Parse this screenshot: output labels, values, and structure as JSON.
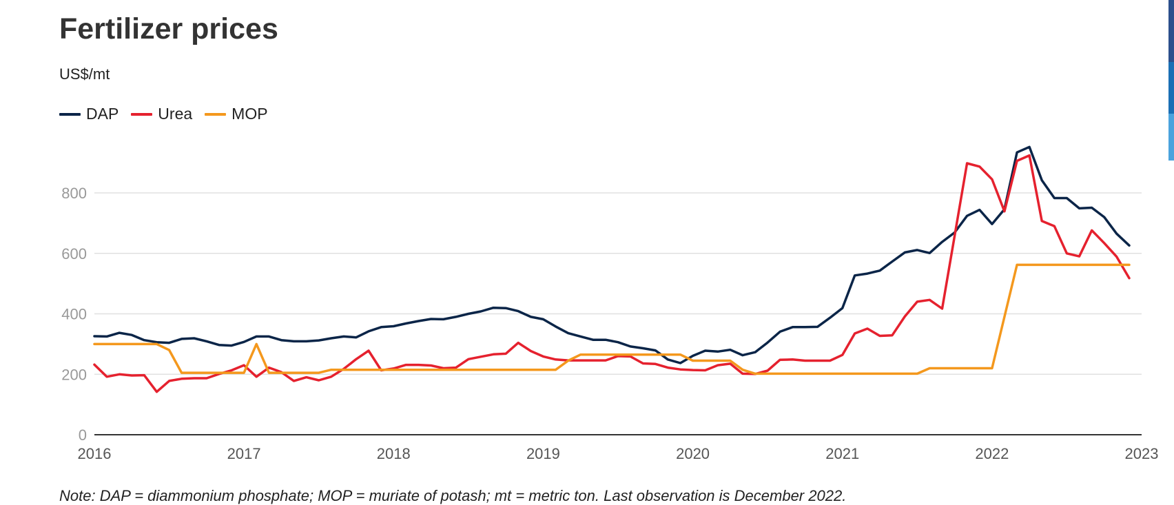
{
  "page": {
    "title": "Fertilizer prices",
    "subtitle": "US$/mt",
    "note": "Note: DAP = diammonium phosphate; MOP = muriate of potash; mt = metric ton. Last observation is December 2022."
  },
  "colors": {
    "DAP": "#0b2548",
    "Urea": "#e5212e",
    "MOP": "#f4981d",
    "grid": "#e0e0e0",
    "axis": "#333333",
    "tick": "#999999"
  },
  "side_bar_colors": [
    "#2c4f8c",
    "#1b6fb5",
    "#4aa3dd"
  ],
  "chart_data": {
    "type": "line",
    "title": "Fertilizer prices",
    "ylabel": "US$/mt",
    "xlim": [
      2016,
      2023
    ],
    "ylim": [
      0,
      950
    ],
    "yticks": [
      0,
      200,
      400,
      600,
      800
    ],
    "xticks": [
      "2016",
      "2017",
      "2018",
      "2019",
      "2020",
      "2021",
      "2022",
      "2023"
    ],
    "grid": true,
    "legend": "top-left",
    "series": [
      {
        "name": "DAP",
        "x": [
          2016.0,
          2016.083,
          2016.167,
          2016.25,
          2016.333,
          2016.417,
          2016.5,
          2016.583,
          2016.667,
          2016.75,
          2016.833,
          2016.917,
          2017.0,
          2017.083,
          2017.167,
          2017.25,
          2017.333,
          2017.417,
          2017.5,
          2017.583,
          2017.667,
          2017.75,
          2017.833,
          2017.917,
          2018.0,
          2018.083,
          2018.167,
          2018.25,
          2018.333,
          2018.417,
          2018.5,
          2018.583,
          2018.667,
          2018.75,
          2018.833,
          2018.917,
          2019.0,
          2019.083,
          2019.167,
          2019.25,
          2019.333,
          2019.417,
          2019.5,
          2019.583,
          2019.667,
          2019.75,
          2019.833,
          2019.917,
          2020.0,
          2020.083,
          2020.167,
          2020.25,
          2020.333,
          2020.417,
          2020.5,
          2020.583,
          2020.667,
          2020.75,
          2020.833,
          2020.917,
          2021.0,
          2021.083,
          2021.167,
          2021.25,
          2021.333,
          2021.417,
          2021.5,
          2021.583,
          2021.667,
          2021.75,
          2021.833,
          2021.917,
          2022.0,
          2022.083,
          2022.167,
          2022.25,
          2022.333,
          2022.417,
          2022.5,
          2022.583,
          2022.667,
          2022.75,
          2022.833,
          2022.917
        ],
        "values": [
          326,
          325,
          337,
          330,
          313,
          306,
          304,
          317,
          319,
          309,
          297,
          295,
          307,
          325,
          325,
          313,
          309,
          309,
          312,
          319,
          325,
          322,
          342,
          356,
          359,
          368,
          376,
          383,
          382,
          390,
          400,
          408,
          420,
          419,
          409,
          390,
          382,
          358,
          336,
          325,
          314,
          314,
          306,
          292,
          286,
          279,
          249,
          237,
          261,
          278,
          275,
          281,
          263,
          273,
          305,
          341,
          356,
          356,
          357,
          387,
          419,
          527,
          533,
          543,
          573,
          603,
          611,
          601,
          638,
          669,
          724,
          744,
          697,
          746,
          934,
          952,
          842,
          783,
          783,
          749,
          751,
          720,
          665,
          626
        ]
      },
      {
        "name": "Urea",
        "x": [
          2016.0,
          2016.083,
          2016.167,
          2016.25,
          2016.333,
          2016.417,
          2016.5,
          2016.583,
          2016.667,
          2016.75,
          2016.833,
          2016.917,
          2017.0,
          2017.083,
          2017.167,
          2017.25,
          2017.333,
          2017.417,
          2017.5,
          2017.583,
          2017.667,
          2017.75,
          2017.833,
          2017.917,
          2018.0,
          2018.083,
          2018.167,
          2018.25,
          2018.333,
          2018.417,
          2018.5,
          2018.583,
          2018.667,
          2018.75,
          2018.833,
          2018.917,
          2019.0,
          2019.083,
          2019.167,
          2019.25,
          2019.333,
          2019.417,
          2019.5,
          2019.583,
          2019.667,
          2019.75,
          2019.833,
          2019.917,
          2020.0,
          2020.083,
          2020.167,
          2020.25,
          2020.333,
          2020.417,
          2020.5,
          2020.583,
          2020.667,
          2020.75,
          2020.833,
          2020.917,
          2021.0,
          2021.083,
          2021.167,
          2021.25,
          2021.333,
          2021.417,
          2021.5,
          2021.583,
          2021.667,
          2021.75,
          2021.833,
          2021.917,
          2022.0,
          2022.083,
          2022.167,
          2022.25,
          2022.333,
          2022.417,
          2022.5,
          2022.583,
          2022.667,
          2022.75,
          2022.833,
          2022.917
        ],
        "values": [
          232,
          192,
          200,
          196,
          197,
          142,
          178,
          185,
          187,
          187,
          201,
          213,
          230,
          192,
          222,
          207,
          178,
          190,
          180,
          192,
          218,
          250,
          278,
          213,
          219,
          231,
          231,
          229,
          220,
          222,
          250,
          258,
          266,
          268,
          304,
          277,
          259,
          249,
          246,
          246,
          246,
          246,
          260,
          259,
          236,
          234,
          222,
          216,
          214,
          213,
          230,
          235,
          202,
          201,
          212,
          248,
          249,
          245,
          245,
          245,
          264,
          335,
          351,
          327,
          329,
          391,
          440,
          446,
          417,
          658,
          898,
          887,
          845,
          739,
          906,
          924,
          707,
          690,
          600,
          590,
          676,
          634,
          589,
          518
        ]
      },
      {
        "name": "MOP",
        "x": [
          2016.0,
          2016.083,
          2016.167,
          2016.25,
          2016.333,
          2016.417,
          2016.5,
          2016.583,
          2016.667,
          2016.75,
          2016.833,
          2016.917,
          2017.0,
          2017.083,
          2017.167,
          2017.25,
          2017.333,
          2017.417,
          2017.5,
          2017.583,
          2017.667,
          2017.75,
          2017.833,
          2017.917,
          2018.0,
          2018.083,
          2018.167,
          2018.25,
          2018.333,
          2018.417,
          2018.5,
          2018.583,
          2018.667,
          2018.75,
          2018.833,
          2018.917,
          2019.0,
          2019.083,
          2019.167,
          2019.25,
          2019.333,
          2019.417,
          2019.5,
          2019.583,
          2019.667,
          2019.75,
          2019.833,
          2019.917,
          2020.0,
          2020.083,
          2020.167,
          2020.25,
          2020.333,
          2020.417,
          2020.5,
          2020.583,
          2020.667,
          2020.75,
          2020.833,
          2020.917,
          2021.0,
          2021.083,
          2021.167,
          2021.25,
          2021.333,
          2021.417,
          2021.5,
          2021.583,
          2021.667,
          2021.75,
          2021.833,
          2021.917,
          2022.0,
          2022.083,
          2022.167,
          2022.25,
          2022.333,
          2022.417,
          2022.5,
          2022.583,
          2022.667,
          2022.75,
          2022.833,
          2022.917
        ],
        "values": [
          300,
          300,
          300,
          300,
          300,
          300,
          280,
          205,
          205,
          205,
          205,
          205,
          205,
          300,
          205,
          205,
          205,
          205,
          205,
          215,
          215,
          215,
          215,
          215,
          215,
          215,
          215,
          215,
          215,
          215,
          215,
          215,
          215,
          215,
          215,
          215,
          215,
          215,
          245,
          265,
          265,
          265,
          265,
          265,
          265,
          265,
          265,
          265,
          245,
          245,
          245,
          245,
          215,
          202,
          202,
          202,
          202,
          202,
          202,
          202,
          202,
          202,
          202,
          202,
          202,
          202,
          202,
          220,
          220,
          220,
          220,
          220,
          220,
          390,
          562,
          562,
          562,
          562,
          562,
          562,
          562,
          562,
          562,
          562
        ]
      }
    ]
  }
}
